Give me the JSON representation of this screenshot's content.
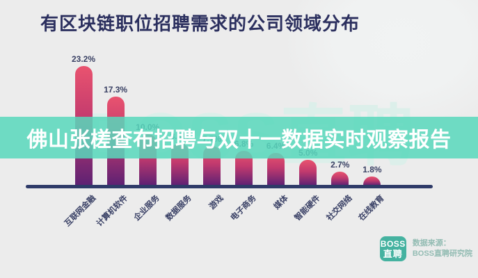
{
  "title": "有区块链职位招聘需求的公司领域分布",
  "watermark_text": "BOSS直聘",
  "overlay_banner": {
    "text": "佛山张槎查布招聘与双十一数据实时观察报告",
    "text_color": "#ffffff"
  },
  "chart_data": {
    "type": "bar",
    "title": "有区块链职位招聘需求的公司领域分布",
    "categories": [
      "互联网金融",
      "计算机软件",
      "企业服务",
      "数据服务",
      "游戏",
      "电子商务",
      "媒体",
      "智能硬件",
      "社交网络",
      "在线教育"
    ],
    "values": [
      23.2,
      17.3,
      10.0,
      8.3,
      7.7,
      6.8,
      6.4,
      5.0,
      2.7,
      1.8
    ],
    "value_labels": [
      "23.2%",
      "17.3%",
      "10.0%",
      "8.3%",
      "7.7%",
      "6.8%",
      "6.4%",
      "5.0%",
      "2.7%",
      "1.8%"
    ],
    "unit": "%",
    "xlabel": "",
    "ylabel": "",
    "ylim": [
      0,
      25
    ],
    "grid": false,
    "legend": false,
    "note": "x-axis category labels rotated 45°, value labels above each bar; bars 4-6 value labels partially hidden behind overlay banner"
  },
  "footer": {
    "logo_line1": "BOSS",
    "logo_line2": "直聘",
    "source_label": "数据来源：",
    "source_name": "BOSS直聘研究院"
  },
  "colors": {
    "background": "#ececec",
    "title-color": "#2b2f5e",
    "bar-top": "#e9536f",
    "bar-mid": "#c23a6e",
    "bar-bottom": "#5d2173",
    "axis": "#2e3a68",
    "banner": "rgba(88,215,188,0.86)",
    "watermark": "#dcefea",
    "logo": "#45b2a0"
  }
}
